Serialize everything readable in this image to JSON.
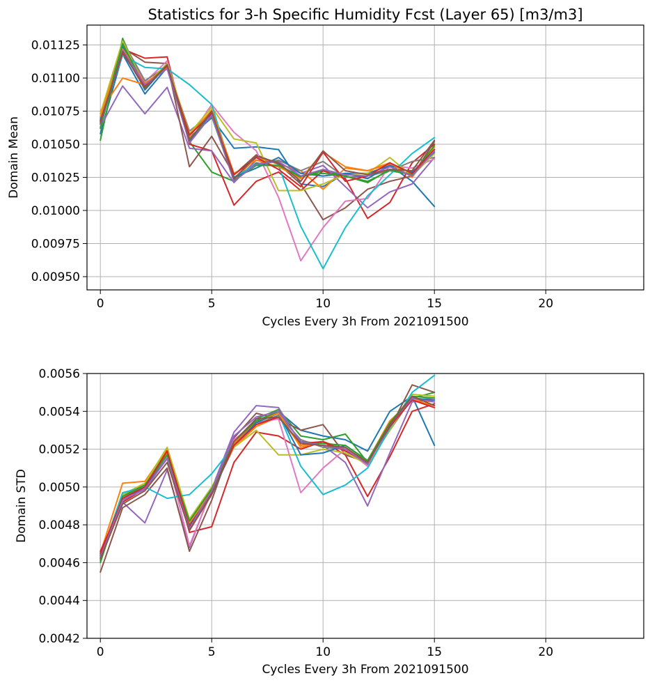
{
  "figure": {
    "title": "Statistics for 3-h Specific Humidity Fcst (Layer 65) [m3/m3]"
  },
  "chart_data": [
    {
      "type": "line",
      "ylabel": "Domain Mean",
      "xlabel": "Cycles Every 3h From 2021091500",
      "xlim": [
        -0.6,
        24.4
      ],
      "ylim": [
        0.0094,
        0.0114
      ],
      "xticks": [
        0,
        5,
        10,
        15,
        20
      ],
      "xtick_labels": [
        "0",
        "5",
        "10",
        "15",
        "20"
      ],
      "yticks": [
        0.0095,
        0.00975,
        0.01,
        0.01025,
        0.0105,
        0.01075,
        0.011,
        0.01125
      ],
      "ytick_labels": [
        "0.00950",
        "0.00975",
        "0.01000",
        "0.01025",
        "0.01050",
        "0.01075",
        "0.01100",
        "0.01125"
      ],
      "grid": true,
      "x": [
        0,
        1,
        2,
        3,
        4,
        5,
        6,
        7,
        8,
        9,
        10,
        11,
        12,
        13,
        14,
        15
      ],
      "series": [
        {
          "color": "#1f77b4",
          "values": [
            0.01058,
            0.01118,
            0.01088,
            0.01108,
            0.01055,
            0.0107,
            0.01047,
            0.01048,
            0.01046,
            0.0102,
            0.01018,
            0.01028,
            0.01028,
            0.01034,
            0.01022,
            0.01003
          ]
        },
        {
          "color": "#ff7f0e",
          "values": [
            0.01075,
            0.011,
            0.01095,
            0.0111,
            0.01058,
            0.01075,
            0.01023,
            0.0104,
            0.01035,
            0.0103,
            0.01016,
            0.01032,
            0.0103,
            0.01035,
            0.01028,
            0.01044
          ]
        },
        {
          "color": "#2ca02c",
          "values": [
            0.01053,
            0.0113,
            0.01092,
            0.01109,
            0.01052,
            0.01029,
            0.01022,
            0.01036,
            0.01033,
            0.01025,
            0.0103,
            0.01026,
            0.01022,
            0.0103,
            0.01027,
            0.01046
          ]
        },
        {
          "color": "#d62728",
          "values": [
            0.01065,
            0.01122,
            0.01115,
            0.01116,
            0.0105,
            0.01045,
            0.01004,
            0.01022,
            0.01029,
            0.01015,
            0.0103,
            0.01024,
            0.00994,
            0.01006,
            0.01036,
            0.0105
          ]
        },
        {
          "color": "#9467bd",
          "values": [
            0.01063,
            0.01094,
            0.01073,
            0.01093,
            0.01047,
            0.01045,
            0.01021,
            0.01038,
            0.01036,
            0.01028,
            0.01034,
            0.01018,
            0.01002,
            0.01014,
            0.0102,
            0.0104
          ]
        },
        {
          "color": "#8c564b",
          "values": [
            0.01068,
            0.01123,
            0.01112,
            0.01111,
            0.01033,
            0.01056,
            0.01027,
            0.01042,
            0.01035,
            0.0102,
            0.00993,
            0.01002,
            0.01016,
            0.01022,
            0.01026,
            0.01052
          ]
        },
        {
          "color": "#e377c2",
          "values": [
            0.01073,
            0.01125,
            0.01097,
            0.01113,
            0.01055,
            0.0108,
            0.01059,
            0.01045,
            0.0101,
            0.00962,
            0.00987,
            0.01007,
            0.01009,
            0.01034,
            0.01032,
            0.01039
          ]
        },
        {
          "color": "#7f7f7f",
          "values": [
            0.0107,
            0.01128,
            0.01098,
            0.01109,
            0.0106,
            0.01073,
            0.01025,
            0.01035,
            0.01038,
            0.0103,
            0.01037,
            0.01025,
            0.01026,
            0.0103,
            0.01037,
            0.0104
          ]
        },
        {
          "color": "#bcbd22",
          "values": [
            0.01073,
            0.01128,
            0.01094,
            0.01111,
            0.01058,
            0.01078,
            0.01054,
            0.01051,
            0.01015,
            0.01015,
            0.0102,
            0.01027,
            0.01028,
            0.0104,
            0.01026,
            0.01043
          ]
        },
        {
          "color": "#17becf",
          "values": [
            0.01069,
            0.01117,
            0.01108,
            0.01107,
            0.01095,
            0.0108,
            0.01025,
            0.01035,
            0.01034,
            0.00988,
            0.00956,
            0.00987,
            0.01011,
            0.01027,
            0.01043,
            0.01055
          ]
        },
        {
          "color": "#1f77b4",
          "values": [
            0.01068,
            0.01124,
            0.01091,
            0.0111,
            0.01052,
            0.01074,
            0.01025,
            0.01032,
            0.0104,
            0.01028,
            0.01026,
            0.01028,
            0.01024,
            0.01034,
            0.01029,
            0.01044
          ]
        },
        {
          "color": "#ff7f0e",
          "values": [
            0.01071,
            0.01122,
            0.01096,
            0.01108,
            0.01056,
            0.01076,
            0.01028,
            0.01038,
            0.01033,
            0.01024,
            0.01044,
            0.01033,
            0.0103,
            0.01036,
            0.01025,
            0.01048
          ]
        },
        {
          "color": "#2ca02c",
          "values": [
            0.01062,
            0.01126,
            0.01093,
            0.0111,
            0.01054,
            0.01071,
            0.01023,
            0.01034,
            0.01034,
            0.01026,
            0.01028,
            0.01026,
            0.01021,
            0.01031,
            0.01027,
            0.01049
          ]
        },
        {
          "color": "#d62728",
          "values": [
            0.01067,
            0.01119,
            0.01094,
            0.01109,
            0.01057,
            0.01073,
            0.01027,
            0.0104,
            0.01031,
            0.01018,
            0.01044,
            0.01022,
            0.01026,
            0.01036,
            0.01028,
            0.01046
          ]
        },
        {
          "color": "#9467bd",
          "values": [
            0.01065,
            0.01121,
            0.01095,
            0.01107,
            0.01051,
            0.01072,
            0.01022,
            0.01035,
            0.01037,
            0.01026,
            0.01031,
            0.01027,
            0.01026,
            0.01033,
            0.01026,
            0.01045
          ]
        },
        {
          "color": "#8c564b",
          "values": [
            0.01066,
            0.0112,
            0.01092,
            0.0111,
            0.01053,
            0.01075,
            0.01024,
            0.01041,
            0.01036,
            0.01022,
            0.01045,
            0.0103,
            0.01027,
            0.01031,
            0.0103,
            0.01053
          ]
        }
      ]
    },
    {
      "type": "line",
      "ylabel": "Domain STD",
      "xlabel": "Cycles Every 3h From 2021091500",
      "xlim": [
        -0.6,
        24.4
      ],
      "ylim": [
        0.0042,
        0.0056
      ],
      "xticks": [
        0,
        5,
        10,
        15,
        20
      ],
      "xtick_labels": [
        "0",
        "5",
        "10",
        "15",
        "20"
      ],
      "yticks": [
        0.0042,
        0.0044,
        0.0046,
        0.0048,
        0.005,
        0.0052,
        0.0054,
        0.0056
      ],
      "ytick_labels": [
        "0.0042",
        "0.0044",
        "0.0046",
        "0.0048",
        "0.0050",
        "0.0052",
        "0.0054",
        "0.0056"
      ],
      "grid": true,
      "x": [
        0,
        1,
        2,
        3,
        4,
        5,
        6,
        7,
        8,
        9,
        10,
        11,
        12,
        13,
        14,
        15
      ],
      "series": [
        {
          "color": "#1f77b4",
          "values": [
            0.00463,
            0.00493,
            0.005,
            0.00515,
            0.00478,
            0.00496,
            0.00523,
            0.00534,
            0.0054,
            0.0053,
            0.00527,
            0.00525,
            0.00519,
            0.0054,
            0.00548,
            0.00522
          ]
        },
        {
          "color": "#ff7f0e",
          "values": [
            0.00465,
            0.00502,
            0.00503,
            0.0052,
            0.0048,
            0.00497,
            0.00521,
            0.00532,
            0.00537,
            0.00522,
            0.00524,
            0.0052,
            0.00514,
            0.00535,
            0.00546,
            0.00545
          ]
        },
        {
          "color": "#2ca02c",
          "values": [
            0.0046,
            0.00496,
            0.00501,
            0.00519,
            0.00483,
            0.00499,
            0.00524,
            0.00536,
            0.00541,
            0.00527,
            0.00525,
            0.00528,
            0.00513,
            0.00532,
            0.00547,
            0.0055
          ]
        },
        {
          "color": "#d62728",
          "values": [
            0.00466,
            0.00492,
            0.00499,
            0.00519,
            0.00476,
            0.00479,
            0.00513,
            0.00529,
            0.00527,
            0.0052,
            0.00524,
            0.00517,
            0.00495,
            0.00516,
            0.0054,
            0.00544
          ]
        },
        {
          "color": "#9467bd",
          "values": [
            0.00464,
            0.00492,
            0.00481,
            0.00509,
            0.00468,
            0.00499,
            0.00529,
            0.00543,
            0.00542,
            0.00523,
            0.00522,
            0.00513,
            0.0049,
            0.00518,
            0.00545,
            0.00546
          ]
        },
        {
          "color": "#8c564b",
          "values": [
            0.00455,
            0.00489,
            0.00496,
            0.0051,
            0.00466,
            0.00493,
            0.00526,
            0.00539,
            0.00536,
            0.0053,
            0.00533,
            0.00517,
            0.00513,
            0.00531,
            0.00554,
            0.0055
          ]
        },
        {
          "color": "#e377c2",
          "values": [
            0.00462,
            0.00494,
            0.00498,
            0.00516,
            0.00469,
            0.00498,
            0.00525,
            0.00534,
            0.00536,
            0.00497,
            0.0051,
            0.0052,
            0.00511,
            0.00532,
            0.00546,
            0.00547
          ]
        },
        {
          "color": "#7f7f7f",
          "values": [
            0.00463,
            0.00495,
            0.005,
            0.00517,
            0.0048,
            0.00497,
            0.00524,
            0.00533,
            0.00538,
            0.00525,
            0.00521,
            0.0052,
            0.00513,
            0.0053,
            0.00547,
            0.00545
          ]
        },
        {
          "color": "#bcbd22",
          "values": [
            0.00464,
            0.00496,
            0.00502,
            0.00521,
            0.00483,
            0.005,
            0.00521,
            0.0053,
            0.00517,
            0.00517,
            0.0052,
            0.00518,
            0.00512,
            0.0053,
            0.00549,
            0.00548
          ]
        },
        {
          "color": "#17becf",
          "values": [
            0.00463,
            0.00497,
            0.005,
            0.00494,
            0.00496,
            0.00507,
            0.00522,
            0.00535,
            0.00539,
            0.00511,
            0.00496,
            0.00501,
            0.0051,
            0.00531,
            0.0055,
            0.00559
          ]
        },
        {
          "color": "#1f77b4",
          "values": [
            0.00464,
            0.00494,
            0.005,
            0.00515,
            0.0048,
            0.00496,
            0.00522,
            0.00534,
            0.00539,
            0.00517,
            0.00518,
            0.00522,
            0.00514,
            0.00533,
            0.00547,
            0.00546
          ]
        },
        {
          "color": "#ff7f0e",
          "values": [
            0.00462,
            0.00495,
            0.00501,
            0.00518,
            0.00481,
            0.00498,
            0.00523,
            0.00535,
            0.00539,
            0.00521,
            0.00524,
            0.0052,
            0.00513,
            0.00533,
            0.00546,
            0.00543
          ]
        },
        {
          "color": "#2ca02c",
          "values": [
            0.00461,
            0.00495,
            0.00501,
            0.00517,
            0.00482,
            0.00499,
            0.00524,
            0.00535,
            0.0054,
            0.00524,
            0.00523,
            0.00522,
            0.00514,
            0.00534,
            0.00548,
            0.00547
          ]
        },
        {
          "color": "#d62728",
          "values": [
            0.00465,
            0.00494,
            0.005,
            0.00519,
            0.00479,
            0.00497,
            0.00522,
            0.00533,
            0.00537,
            0.00523,
            0.00524,
            0.00519,
            0.00513,
            0.00532,
            0.00546,
            0.00542
          ]
        },
        {
          "color": "#9467bd",
          "values": [
            0.00463,
            0.00493,
            0.00499,
            0.00515,
            0.00478,
            0.00498,
            0.00527,
            0.00537,
            0.0054,
            0.00524,
            0.00522,
            0.0052,
            0.00512,
            0.00533,
            0.00547,
            0.00545
          ]
        },
        {
          "color": "#8c564b",
          "values": [
            0.00462,
            0.00491,
            0.00498,
            0.00513,
            0.00477,
            0.00496,
            0.00524,
            0.00536,
            0.00537,
            0.00523,
            0.00522,
            0.00521,
            0.00513,
            0.00533,
            0.00548,
            0.00543
          ]
        }
      ]
    }
  ]
}
